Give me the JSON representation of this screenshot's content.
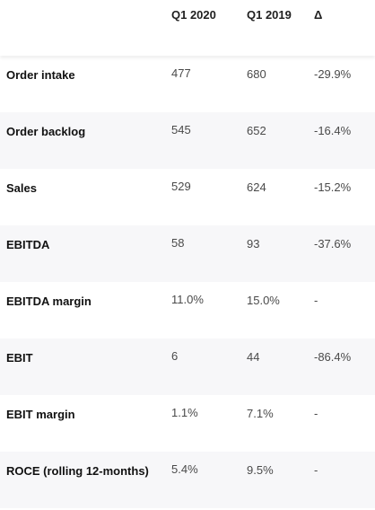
{
  "table": {
    "columns": [
      "",
      "Q1 2020",
      "Q1 2019",
      "Δ"
    ],
    "rows": [
      {
        "label": "Order intake",
        "q1_2020": "477",
        "q1_2019": "680",
        "delta": "-29.9%"
      },
      {
        "label": "Order backlog",
        "q1_2020": "545",
        "q1_2019": "652",
        "delta": "-16.4%"
      },
      {
        "label": "Sales",
        "q1_2020": "529",
        "q1_2019": "624",
        "delta": "-15.2%"
      },
      {
        "label": "EBITDA",
        "q1_2020": "58",
        "q1_2019": "93",
        "delta": "-37.6%"
      },
      {
        "label": "EBITDA margin",
        "q1_2020": "11.0%",
        "q1_2019": "15.0%",
        "delta": "-"
      },
      {
        "label": "EBIT",
        "q1_2020": "6",
        "q1_2019": "44",
        "delta": "-86.4%"
      },
      {
        "label": "EBIT margin",
        "q1_2020": "1.1%",
        "q1_2019": "7.1%",
        "delta": "-"
      },
      {
        "label": "ROCE (rolling 12-months)",
        "q1_2020": "5.4%",
        "q1_2019": "9.5%",
        "delta": "-"
      }
    ]
  },
  "colors": {
    "row_alt_background": "#f7f7f9",
    "label_text": "#111111",
    "value_text": "#4a4a4a"
  }
}
